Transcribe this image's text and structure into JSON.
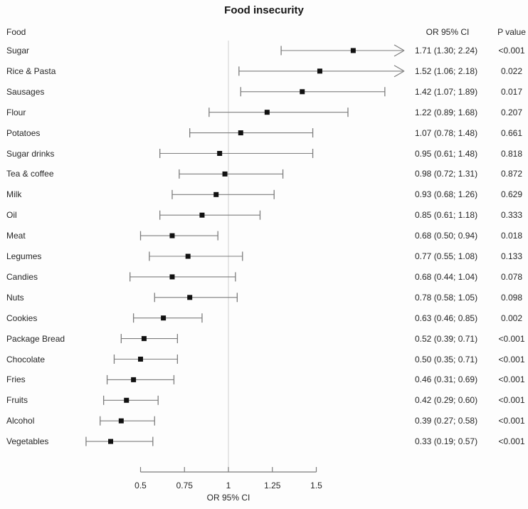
{
  "chart_data": {
    "type": "forest",
    "title": "Food insecurity",
    "column_headers": {
      "food": "Food",
      "or_ci": "OR 95% CI",
      "p_value": "P value"
    },
    "xlabel": "OR 95% CI",
    "x_ticks": [
      0.5,
      0.75,
      1,
      1.25,
      1.5
    ],
    "x_tick_labels": [
      "0.5",
      "0.75",
      "1",
      "1.25",
      "1.5"
    ],
    "reference_line": 1,
    "clip_upper": 2.0,
    "rows": [
      {
        "label": "Sugar",
        "or": 1.71,
        "lo": 1.3,
        "hi": 2.24,
        "or_text": "1.71 (1.30; 2.24)",
        "p": "<0.001"
      },
      {
        "label": "Rice & Pasta",
        "or": 1.52,
        "lo": 1.06,
        "hi": 2.18,
        "or_text": "1.52 (1.06; 2.18)",
        "p": "0.022"
      },
      {
        "label": "Sausages",
        "or": 1.42,
        "lo": 1.07,
        "hi": 1.89,
        "or_text": "1.42 (1.07; 1.89)",
        "p": "0.017"
      },
      {
        "label": "Flour",
        "or": 1.22,
        "lo": 0.89,
        "hi": 1.68,
        "or_text": "1.22 (0.89; 1.68)",
        "p": "0.207"
      },
      {
        "label": "Potatoes",
        "or": 1.07,
        "lo": 0.78,
        "hi": 1.48,
        "or_text": "1.07 (0.78; 1.48)",
        "p": "0.661"
      },
      {
        "label": "Sugar drinks",
        "or": 0.95,
        "lo": 0.61,
        "hi": 1.48,
        "or_text": "0.95 (0.61; 1.48)",
        "p": "0.818"
      },
      {
        "label": "Tea & coffee",
        "or": 0.98,
        "lo": 0.72,
        "hi": 1.31,
        "or_text": "0.98 (0.72; 1.31)",
        "p": "0.872"
      },
      {
        "label": "Milk",
        "or": 0.93,
        "lo": 0.68,
        "hi": 1.26,
        "or_text": "0.93 (0.68; 1.26)",
        "p": "0.629"
      },
      {
        "label": "Oil",
        "or": 0.85,
        "lo": 0.61,
        "hi": 1.18,
        "or_text": "0.85 (0.61; 1.18)",
        "p": "0.333"
      },
      {
        "label": "Meat",
        "or": 0.68,
        "lo": 0.5,
        "hi": 0.94,
        "or_text": "0.68 (0.50; 0.94)",
        "p": "0.018"
      },
      {
        "label": "Legumes",
        "or": 0.77,
        "lo": 0.55,
        "hi": 1.08,
        "or_text": "0.77 (0.55; 1.08)",
        "p": "0.133"
      },
      {
        "label": "Candies",
        "or": 0.68,
        "lo": 0.44,
        "hi": 1.04,
        "or_text": "0.68 (0.44; 1.04)",
        "p": "0.078"
      },
      {
        "label": "Nuts",
        "or": 0.78,
        "lo": 0.58,
        "hi": 1.05,
        "or_text": "0.78 (0.58; 1.05)",
        "p": "0.098"
      },
      {
        "label": "Cookies",
        "or": 0.63,
        "lo": 0.46,
        "hi": 0.85,
        "or_text": "0.63 (0.46; 0.85)",
        "p": "0.002"
      },
      {
        "label": "Package Bread",
        "or": 0.52,
        "lo": 0.39,
        "hi": 0.71,
        "or_text": "0.52 (0.39; 0.71)",
        "p": "<0.001"
      },
      {
        "label": "Chocolate",
        "or": 0.5,
        "lo": 0.35,
        "hi": 0.71,
        "or_text": "0.50 (0.35; 0.71)",
        "p": "<0.001"
      },
      {
        "label": "Fries",
        "or": 0.46,
        "lo": 0.31,
        "hi": 0.69,
        "or_text": "0.46 (0.31; 0.69)",
        "p": "<0.001"
      },
      {
        "label": "Fruits",
        "or": 0.42,
        "lo": 0.29,
        "hi": 0.6,
        "or_text": "0.42 (0.29; 0.60)",
        "p": "<0.001"
      },
      {
        "label": "Alcohol",
        "or": 0.39,
        "lo": 0.27,
        "hi": 0.58,
        "or_text": "0.39 (0.27; 0.58)",
        "p": "<0.001"
      },
      {
        "label": "Vegetables",
        "or": 0.33,
        "lo": 0.19,
        "hi": 0.57,
        "or_text": "0.33 (0.19; 0.57)",
        "p": "<0.001"
      }
    ]
  },
  "colors": {
    "marker": "#111111",
    "ci_line": "#7d7d7d",
    "axis_line": "#7d7d7d",
    "reference_line": "#d6d6d6",
    "text": "#262626",
    "background": "#fdfdfd"
  }
}
